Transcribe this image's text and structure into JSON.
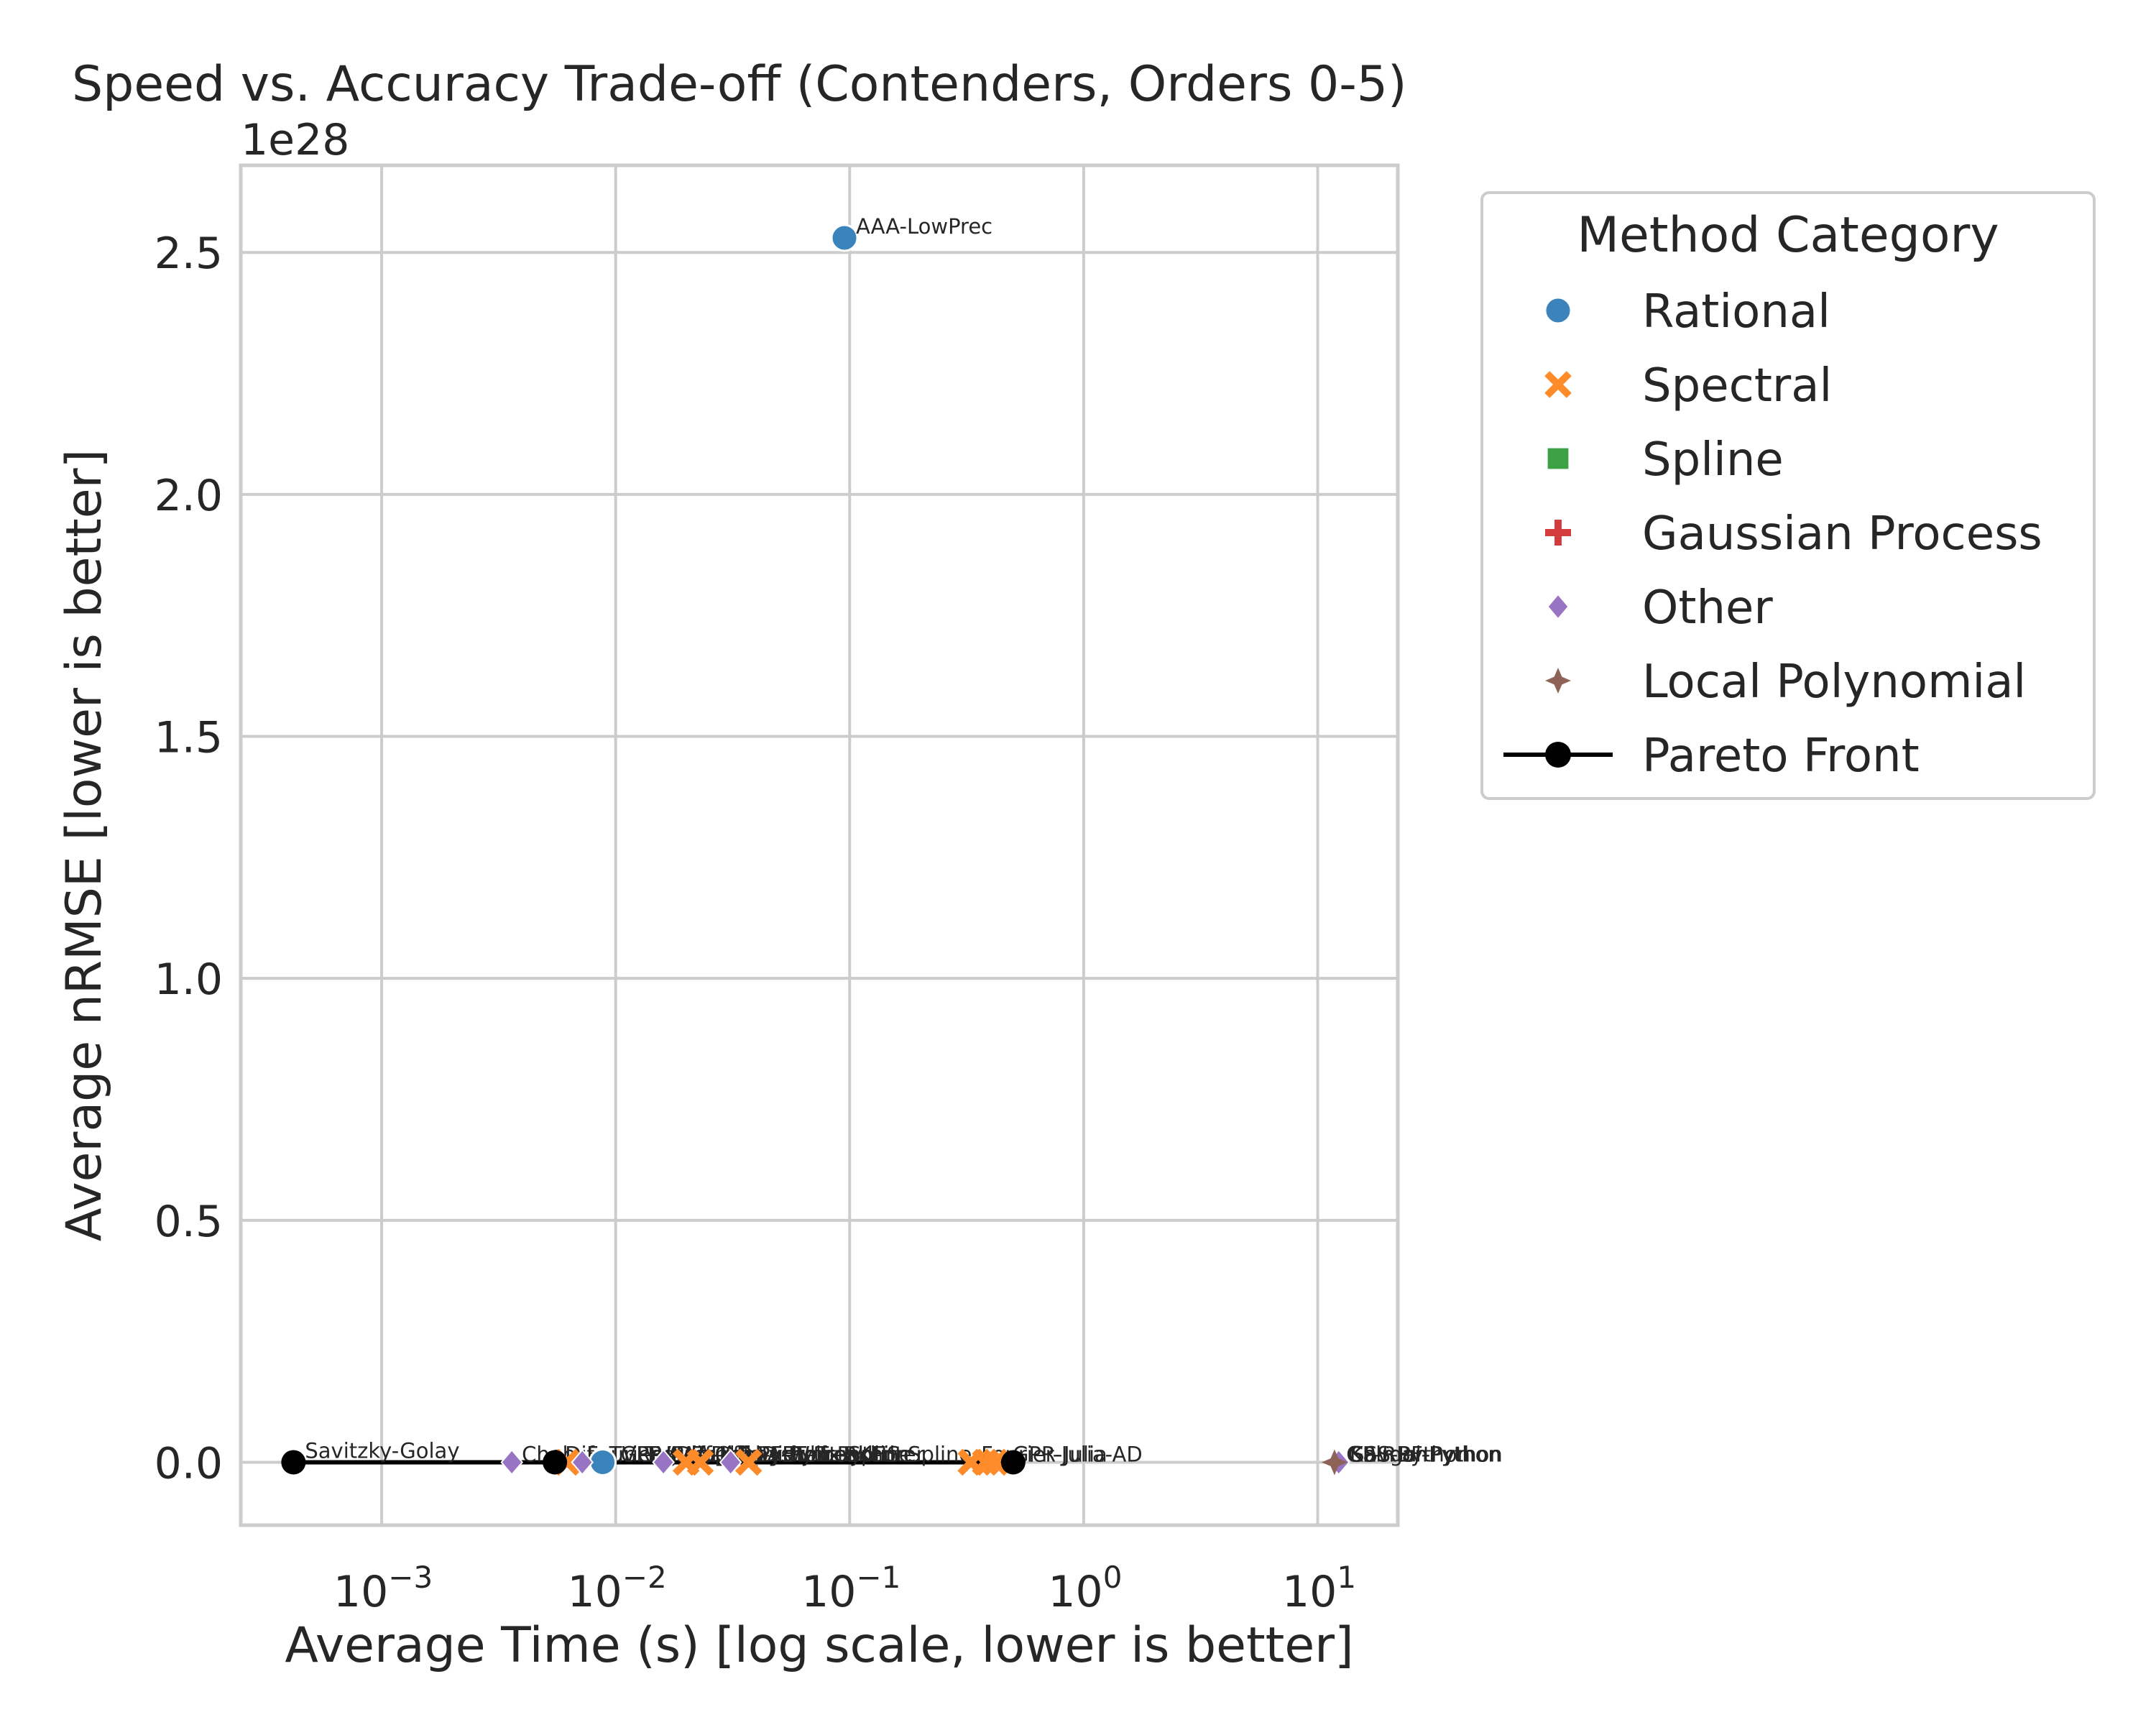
{
  "chart_data": {
    "type": "scatter",
    "title": "Speed vs. Accuracy Trade-off (Contenders, Orders 0-5)",
    "xlabel": "Average Time (s) [log scale, lower is better]",
    "ylabel": "Average nRMSE [lower is better]",
    "x_scale": "log",
    "xlim": [
      0.00025,
      22
    ],
    "ylim": [
      -1.3e+27,
      2.68e+28
    ],
    "y_offset_label": "1e28",
    "x_ticks": [
      {
        "value": 0.001,
        "base": "10",
        "exp": "−3"
      },
      {
        "value": 0.01,
        "base": "10",
        "exp": "−2"
      },
      {
        "value": 0.1,
        "base": "10",
        "exp": "−1"
      },
      {
        "value": 1,
        "base": "10",
        "exp": "0"
      },
      {
        "value": 10,
        "base": "10",
        "exp": "1"
      }
    ],
    "y_ticks": [
      {
        "value": 0,
        "label": "0.0"
      },
      {
        "value": 5e+27,
        "label": "0.5"
      },
      {
        "value": 1e+28,
        "label": "1.0"
      },
      {
        "value": 1.5e+28,
        "label": "1.5"
      },
      {
        "value": 2e+28,
        "label": "2.0"
      },
      {
        "value": 2.5e+28,
        "label": "2.5"
      }
    ],
    "grid": true,
    "legend": {
      "title": "Method Category",
      "placement": "outside-right-top",
      "entries": [
        {
          "name": "Rational",
          "marker": "circle",
          "color": "#3a84bb"
        },
        {
          "name": "Spectral",
          "marker": "x",
          "color": "#fd8b2a"
        },
        {
          "name": "Spline",
          "marker": "square",
          "color": "#3ba144"
        },
        {
          "name": "Gaussian Process",
          "marker": "plus",
          "color": "#d33b3d"
        },
        {
          "name": "Other",
          "marker": "diamond",
          "color": "#9a74c4"
        },
        {
          "name": "Local Polynomial",
          "marker": "star",
          "color": "#8f6258"
        },
        {
          "name": "Pareto Front",
          "marker": "line-circle",
          "color": "#000000"
        }
      ]
    },
    "series": [
      {
        "name": "Rational",
        "marker": "circle",
        "color": "#3a84bb",
        "points": [
          {
            "x": 0.095,
            "y": 2.53e+28,
            "label": "AAA-LowPrec"
          },
          {
            "x": 0.0088,
            "y": 0,
            "label": ""
          }
        ]
      },
      {
        "name": "Spectral",
        "marker": "x",
        "color": "#fd8b2a",
        "points": [
          {
            "x": 0.0062,
            "y": 0,
            "label": ""
          },
          {
            "x": 0.02,
            "y": 0,
            "label": ""
          },
          {
            "x": 0.023,
            "y": 0,
            "label": ""
          },
          {
            "x": 0.037,
            "y": 0,
            "label": ""
          },
          {
            "x": 0.33,
            "y": 0,
            "label": ""
          },
          {
            "x": 0.38,
            "y": 0,
            "label": ""
          },
          {
            "x": 0.42,
            "y": 0,
            "label": ""
          }
        ]
      },
      {
        "name": "Other",
        "marker": "diamond",
        "color": "#9a74c4",
        "points": [
          {
            "x": 0.0036,
            "y": 0,
            "label": ""
          },
          {
            "x": 0.0072,
            "y": 0,
            "label": ""
          },
          {
            "x": 0.016,
            "y": 0,
            "label": ""
          },
          {
            "x": 0.031,
            "y": 0,
            "label": ""
          },
          {
            "x": 12.3,
            "y": 0,
            "label": ""
          }
        ]
      },
      {
        "name": "Local Polynomial",
        "marker": "star",
        "color": "#8f6258",
        "points": [
          {
            "x": 11.8,
            "y": 0,
            "label": ""
          }
        ]
      },
      {
        "name": "Pareto Front",
        "marker": "line-circle",
        "color": "#000000",
        "points": [
          {
            "x": 0.00042,
            "y": 0,
            "label": "Savitzky-Golay"
          },
          {
            "x": 0.0055,
            "y": 0,
            "label": ""
          },
          {
            "x": 0.5,
            "y": 0,
            "label": ""
          }
        ]
      }
    ],
    "annotations": [
      {
        "x": 0.0036,
        "text": "Cheb"
      },
      {
        "x": 0.0055,
        "text": "Dif"
      },
      {
        "x": 0.0068,
        "text": "Fourier-Interp"
      },
      {
        "x": 0.0085,
        "text": "TVRegDiff-Julia"
      },
      {
        "x": 0.0095,
        "text": "GPR-Julia-AD"
      },
      {
        "x": 0.012,
        "text": "TVRegDiff_Python"
      },
      {
        "x": 0.015,
        "text": "AAA-Julia"
      },
      {
        "x": 0.019,
        "text": "Fourier-FFT"
      },
      {
        "x": 0.024,
        "text": "Chebyshev-Python"
      },
      {
        "x": 0.03,
        "text": "AAA-Python"
      },
      {
        "x": 0.038,
        "text": "Dierckx-Spline"
      },
      {
        "x": 0.05,
        "text": "Whittaker"
      },
      {
        "x": 0.065,
        "text": "TrendFilter"
      },
      {
        "x": 0.085,
        "text": "RKHS-Spline"
      },
      {
        "x": 0.33,
        "text": "Fourier-Julia-AD"
      },
      {
        "x": 0.45,
        "text": "GPR-Julia"
      },
      {
        "x": 12,
        "text": "GP-RBF-Python"
      },
      {
        "x": 12.2,
        "text": "GSS-Python"
      },
      {
        "x": 12.4,
        "text": "Kalman"
      },
      {
        "x": 12.6,
        "text": "Savgol-Python"
      }
    ]
  }
}
